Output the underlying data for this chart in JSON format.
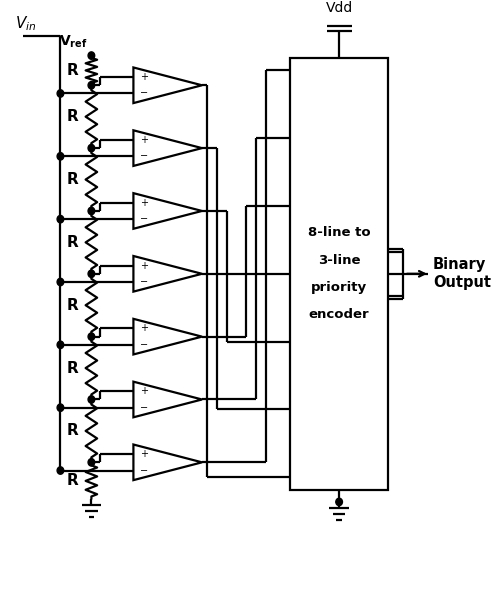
{
  "bg_color": "#ffffff",
  "line_color": "#000000",
  "fig_width": 4.93,
  "fig_height": 6.08,
  "dpi": 100,
  "encoder_label": [
    "8-line to",
    "3-line",
    "priority",
    "encoder"
  ],
  "vdd_label": "Vdd",
  "binary_output_label": [
    "Binary",
    "Output"
  ],
  "r_label": "R",
  "xlim": [
    0,
    10
  ],
  "ylim": [
    0,
    12
  ]
}
